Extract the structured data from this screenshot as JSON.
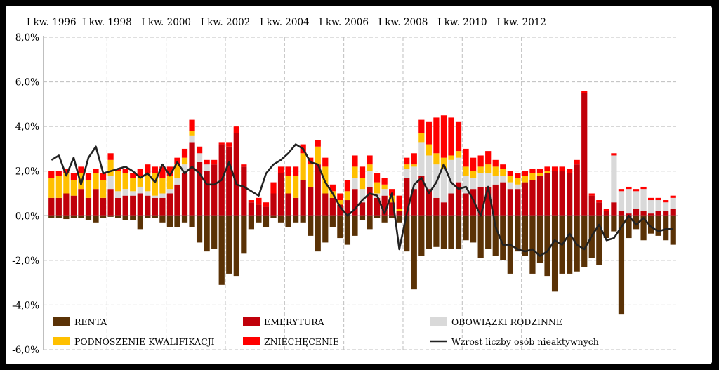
{
  "chart_data": {
    "type": "bar",
    "stacked": true,
    "title": "",
    "xlabel": "",
    "ylabel": "",
    "ylim": [
      -6,
      8
    ],
    "y_ticks": [
      "-6,0%",
      "-4,0%",
      "-2,0%",
      "0,0%",
      "2,0%",
      "4,0%",
      "6,0%",
      "8,0%"
    ],
    "y_tick_values": [
      -6,
      -4,
      -2,
      0,
      2,
      4,
      6,
      8
    ],
    "x_tick_labels": [
      "I kw. 1996",
      "I kw. 1998",
      "I kw. 2000",
      "I kw. 2002",
      "I kw. 2004",
      "I kw. 2006",
      "I kw. 2008",
      "I kw. 2010",
      "I kw. 2012"
    ],
    "x_tick_every": 8,
    "grid": true,
    "legend_position": "bottom-inside",
    "series": [
      {
        "name": "RENTA",
        "color": "#5a3206",
        "values": [
          -0.1,
          -0.1,
          -0.15,
          -0.1,
          -0.1,
          -0.2,
          -0.3,
          -0.1,
          -0.05,
          -0.1,
          -0.2,
          -0.2,
          -0.6,
          -0.1,
          -0.1,
          -0.3,
          -0.5,
          -0.5,
          -0.3,
          -0.5,
          -1.2,
          -1.6,
          -1.5,
          -3.1,
          -2.6,
          -2.7,
          -1.7,
          -0.6,
          -0.3,
          -0.5,
          -0.1,
          -0.3,
          -0.5,
          -0.3,
          -0.3,
          -0.9,
          -1.6,
          -1.2,
          -0.5,
          -1.0,
          -1.3,
          -0.9,
          -0.2,
          -0.6,
          -0.1,
          -0.3,
          -0.1,
          -0.3,
          -1.6,
          -3.3,
          -1.8,
          -1.5,
          -1.4,
          -1.5,
          -1.5,
          -1.5,
          -1.1,
          -1.2,
          -1.9,
          -1.5,
          -1.8,
          -2.0,
          -2.6,
          -1.6,
          -1.8,
          -2.6,
          -2.1,
          -2.7,
          -3.4,
          -2.6,
          -2.6,
          -2.5,
          -2.3,
          -1.9,
          -2.2,
          -1.0,
          -0.7,
          -4.4,
          -1.0,
          -0.6,
          -1.1,
          -0.8,
          -0.9,
          -1.1,
          -1.3
        ]
      },
      {
        "name": "EMERYTURA",
        "color": "#c0000a",
        "values": [
          0.8,
          0.8,
          1.0,
          0.9,
          1.2,
          0.8,
          1.2,
          0.8,
          1.2,
          0.8,
          0.9,
          0.9,
          1.0,
          0.9,
          0.8,
          0.8,
          1.0,
          1.4,
          1.9,
          3.3,
          2.4,
          2.0,
          2.3,
          3.2,
          3.1,
          3.7,
          2.2,
          0.6,
          0.5,
          0.4,
          1.0,
          1.9,
          1.0,
          0.8,
          1.6,
          1.3,
          2.3,
          1.0,
          0.8,
          0.5,
          0.7,
          1.2,
          0.6,
          1.3,
          0.8,
          0.9,
          0.6,
          0.2,
          1.7,
          1.2,
          1.8,
          1.2,
          0.8,
          0.6,
          1.0,
          1.5,
          1.0,
          1.2,
          1.3,
          1.3,
          1.4,
          1.5,
          1.2,
          1.2,
          1.5,
          1.6,
          1.8,
          1.9,
          2.0,
          2.0,
          1.9,
          2.3,
          5.5,
          0.9,
          0.6,
          0.2,
          0.6,
          0.2,
          0.1,
          0.3,
          0.2,
          0.1,
          0.2,
          0.2,
          0.3
        ]
      },
      {
        "name": "OBOWIĄZKI RODZINNE",
        "color": "#d9d9d9",
        "values": [
          0,
          0,
          0,
          0,
          0,
          0,
          0,
          0,
          0.6,
          0.3,
          0.3,
          0.2,
          0.3,
          0.2,
          0.1,
          0.2,
          0.2,
          0.3,
          0.4,
          0.3,
          0.4,
          0.3,
          0,
          0,
          0,
          0,
          0,
          0,
          0,
          0,
          0,
          0,
          0,
          0,
          0,
          0,
          0,
          0,
          0,
          0,
          0,
          0.5,
          0.6,
          0.7,
          0.2,
          0.3,
          0,
          0,
          0.4,
          1.0,
          1.5,
          1.5,
          1.5,
          1.5,
          1.5,
          1.1,
          0.8,
          0.5,
          0.6,
          0.6,
          0.4,
          0.3,
          0.3,
          0.2,
          0,
          0,
          0,
          0,
          0,
          0,
          0,
          0,
          0,
          0,
          0,
          0,
          2.1,
          0.9,
          1.1,
          0.8,
          1.0,
          0.6,
          0.5,
          0.4,
          0.5
        ]
      },
      {
        "name": "PODNOSZENIE KWALIFIKACJI",
        "color": "#ffc000",
        "values": [
          0.9,
          1.0,
          0.9,
          0.7,
          0.7,
          0.8,
          0.7,
          0.8,
          0.7,
          0.9,
          0.7,
          0.6,
          0.5,
          0.8,
          1.0,
          0.7,
          0.6,
          0.6,
          0.3,
          0.2,
          0,
          0,
          0,
          0,
          0,
          0,
          0,
          0,
          0,
          0,
          0,
          0,
          0.8,
          1.0,
          1.2,
          1.0,
          0.8,
          1.2,
          0.3,
          0.2,
          0.4,
          0.5,
          0.5,
          0.3,
          0.5,
          0.2,
          0.3,
          0.1,
          0.2,
          0.1,
          0.4,
          0.5,
          0.5,
          0.5,
          0.2,
          0.3,
          0.4,
          0.3,
          0.3,
          0.4,
          0.4,
          0.3,
          0.3,
          0.3,
          0.3,
          0.3,
          0.1,
          0.1,
          0,
          0,
          0,
          0,
          0,
          0,
          0,
          0,
          0,
          0,
          0,
          0,
          0,
          0,
          0,
          0,
          0
        ]
      },
      {
        "name": "ZNIECHĘCENIE",
        "color": "#ff0000",
        "values": [
          0.3,
          0.2,
          0.2,
          0.3,
          0.3,
          0.3,
          0.2,
          0.3,
          0.3,
          0.1,
          0.2,
          0.2,
          0.3,
          0.4,
          0.3,
          0.5,
          0.4,
          0.3,
          0.4,
          0.5,
          0.3,
          0.2,
          0.2,
          0.1,
          0.2,
          0.3,
          0.1,
          0.1,
          0.3,
          0.2,
          0.5,
          0.3,
          0.4,
          0.4,
          0.4,
          0.3,
          0.3,
          0.4,
          0.3,
          0.3,
          0.5,
          0.5,
          0.5,
          0.4,
          0.4,
          0.3,
          0.3,
          0.6,
          0.3,
          0.5,
          0.6,
          1.0,
          1.6,
          1.9,
          1.7,
          1.3,
          0.8,
          0.6,
          0.5,
          0.6,
          0.3,
          0.2,
          0.2,
          0.2,
          0.2,
          0.2,
          0.2,
          0.2,
          0.2,
          0.2,
          0.2,
          0.2,
          0.1,
          0.1,
          0.1,
          0.1,
          0.1,
          0.1,
          0.1,
          0.1,
          0.1,
          0.1,
          0.1,
          0.1,
          0.1
        ]
      },
      {
        "name": "Wzrost liczby osób nieaktywnych",
        "type": "line",
        "color": "#222222",
        "values": [
          2.5,
          2.7,
          1.8,
          2.6,
          1.4,
          2.6,
          3.1,
          1.9,
          2.0,
          2.1,
          2.2,
          2.0,
          1.7,
          1.9,
          1.5,
          2.3,
          1.8,
          2.4,
          1.9,
          2.2,
          1.9,
          1.4,
          1.4,
          1.6,
          2.4,
          1.4,
          1.3,
          1.1,
          0.9,
          1.9,
          2.3,
          2.5,
          2.8,
          3.2,
          3.0,
          2.4,
          2.3,
          1.5,
          1.0,
          0.4,
          0.0,
          0.3,
          0.7,
          1.0,
          0.9,
          0.1,
          1.0,
          -1.5,
          0.1,
          1.4,
          1.7,
          1.0,
          1.5,
          2.3,
          1.5,
          1.2,
          1.3,
          0.7,
          0.0,
          1.3,
          -0.5,
          -1.3,
          -1.3,
          -1.5,
          -1.6,
          -1.5,
          -1.8,
          -1.6,
          -1.1,
          -1.3,
          -0.8,
          -1.3,
          -1.5,
          -0.9,
          -0.4,
          -1.1,
          -1.0,
          -0.5,
          0.0,
          -0.4,
          -0.1,
          -0.5,
          -0.7,
          -0.6,
          -0.6
        ]
      }
    ]
  }
}
